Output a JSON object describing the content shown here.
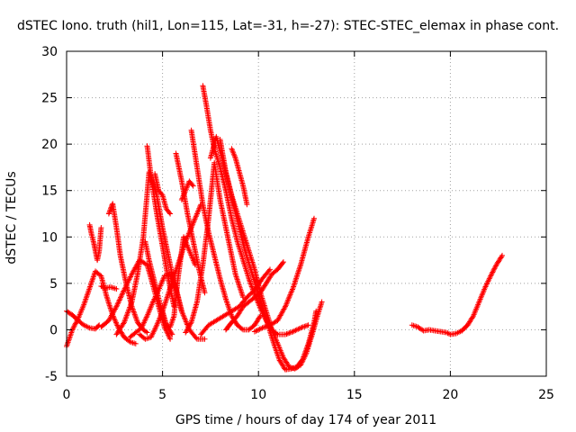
{
  "chart_data": {
    "type": "scatter",
    "title": "dSTEC Iono. truth (hil1, Lon=115, Lat=-31, h=-27): STEC-STEC_elemax in phase cont.",
    "xlabel": "GPS time / hours of day 174 of year 2011",
    "ylabel": "dSTEC  / TECUs",
    "xlim": [
      0,
      25
    ],
    "ylim": [
      -5,
      30
    ],
    "xticks": [
      0,
      5,
      10,
      15,
      20,
      25
    ],
    "yticks": [
      -5,
      0,
      5,
      10,
      15,
      20,
      25,
      30
    ],
    "grid": true,
    "marker": "+",
    "color": "#ff0000",
    "series": [
      {
        "x": [
          0.0,
          0.3,
          0.6,
          0.9,
          1.2,
          1.5,
          1.7
        ],
        "y": [
          2.0,
          1.6,
          1.0,
          0.5,
          0.2,
          0.1,
          0.5
        ]
      },
      {
        "x": [
          0.0,
          0.3,
          0.6,
          0.9,
          1.2,
          1.5,
          1.8,
          2.1,
          2.4,
          2.7,
          3.0,
          3.3,
          3.6
        ],
        "y": [
          -1.8,
          0.0,
          1.2,
          2.7,
          4.5,
          6.3,
          5.8,
          3.5,
          1.6,
          0.2,
          -0.8,
          -1.3,
          -1.5
        ]
      },
      {
        "x": [
          1.2,
          1.3,
          1.4,
          1.5,
          1.6,
          1.7,
          1.8
        ],
        "y": [
          11.3,
          10.3,
          9.5,
          8.5,
          7.5,
          8.5,
          11.0
        ]
      },
      {
        "x": [
          1.8,
          2.0,
          2.3,
          2.6
        ],
        "y": [
          4.7,
          4.5,
          4.6,
          4.4
        ]
      },
      {
        "x": [
          2.2,
          2.4,
          2.6,
          2.8,
          3.1,
          3.4,
          3.7,
          4.0,
          4.2
        ],
        "y": [
          12.5,
          13.6,
          11.0,
          8.0,
          5.0,
          2.5,
          0.8,
          0.0,
          -0.3
        ]
      },
      {
        "x": [
          1.8,
          2.2,
          2.6,
          3.0,
          3.4,
          3.8,
          4.2,
          4.5,
          4.8,
          5.1,
          5.4
        ],
        "y": [
          0.3,
          1.0,
          2.5,
          4.3,
          6.0,
          7.5,
          7.0,
          4.8,
          2.5,
          0.3,
          -1.0
        ]
      },
      {
        "x": [
          2.6,
          3.0,
          3.4,
          3.7,
          4.0,
          4.3,
          4.7,
          5.0,
          5.3,
          5.6,
          6.0,
          6.4,
          6.8,
          7.2
        ],
        "y": [
          -0.5,
          0.8,
          3.0,
          6.0,
          10.0,
          17.0,
          14.5,
          11.0,
          8.0,
          5.0,
          2.0,
          0.0,
          -1.0,
          -1.0
        ]
      },
      {
        "x": [
          3.3,
          3.6,
          3.9,
          4.2,
          4.5,
          4.8,
          5.1,
          5.4,
          5.7,
          6.0
        ],
        "y": [
          -0.8,
          -0.3,
          0.2,
          1.5,
          3.0,
          4.3,
          5.8,
          6.0,
          4.5,
          2.0
        ]
      },
      {
        "x": [
          4.1,
          4.3,
          4.6,
          4.9,
          5.2,
          5.5
        ],
        "y": [
          9.5,
          7.5,
          5.0,
          2.5,
          0.5,
          -0.5
        ]
      },
      {
        "x": [
          4.2,
          4.4,
          4.7,
          5.0,
          5.3,
          5.6
        ],
        "y": [
          19.8,
          16.5,
          12.5,
          9.0,
          5.5,
          2.5
        ]
      },
      {
        "x": [
          4.6,
          4.8,
          5.0,
          5.2,
          5.4
        ],
        "y": [
          16.8,
          15.0,
          14.5,
          13.0,
          12.5
        ]
      },
      {
        "x": [
          5.0,
          5.2,
          5.4,
          5.6,
          5.8,
          6.1,
          6.4,
          6.7
        ],
        "y": [
          2.0,
          0.5,
          0.3,
          1.5,
          5.5,
          10.0,
          8.5,
          7.0
        ]
      },
      {
        "x": [
          3.8,
          4.1,
          4.4,
          4.7,
          5.0,
          5.4,
          5.8,
          6.2,
          6.6,
          7.0
        ],
        "y": [
          -0.5,
          -1.0,
          -0.8,
          0.5,
          2.0,
          4.5,
          7.0,
          9.5,
          11.5,
          13.5
        ]
      },
      {
        "x": [
          5.7,
          6.0,
          6.3,
          6.6,
          6.9,
          7.2
        ],
        "y": [
          19.0,
          16.0,
          12.5,
          9.5,
          6.5,
          4.0
        ]
      },
      {
        "x": [
          6.0,
          6.2,
          6.4,
          6.6
        ],
        "y": [
          14.0,
          15.0,
          16.0,
          15.5
        ]
      },
      {
        "x": [
          6.2,
          6.5,
          6.8,
          7.1,
          7.4,
          7.7,
          8.0,
          8.4,
          8.8,
          9.2
        ],
        "y": [
          -0.3,
          0.8,
          3.0,
          7.0,
          12.0,
          18.0,
          14.0,
          10.0,
          6.0,
          3.5
        ]
      },
      {
        "x": [
          6.5,
          6.8,
          7.1,
          7.4,
          7.7,
          8.0,
          8.3,
          8.6,
          8.9,
          9.2,
          9.5,
          9.8,
          10.1
        ],
        "y": [
          21.5,
          17.5,
          13.5,
          10.5,
          8.0,
          5.5,
          3.3,
          1.5,
          0.5,
          0.0,
          0.0,
          0.5,
          1.5
        ]
      },
      {
        "x": [
          7.1,
          7.3,
          7.5,
          7.7,
          8.0,
          8.3,
          8.6,
          8.9,
          9.2,
          9.5,
          9.8,
          10.1,
          10.4,
          10.7,
          11.0,
          11.4,
          11.8,
          12.2,
          12.6
        ],
        "y": [
          26.3,
          24.0,
          21.5,
          19.5,
          17.5,
          15.0,
          12.0,
          9.5,
          7.5,
          5.5,
          3.8,
          2.3,
          1.0,
          0.0,
          -0.5,
          -0.5,
          -0.2,
          0.2,
          0.5
        ]
      },
      {
        "x": [
          7.5,
          7.8,
          8.1,
          8.4,
          8.7,
          9.0,
          9.3,
          9.6,
          9.9,
          10.2,
          10.5,
          10.8,
          11.1,
          11.4,
          11.7,
          12.0,
          12.3,
          12.6,
          12.9,
          13.0
        ],
        "y": [
          18.5,
          20.8,
          18.5,
          16.0,
          13.5,
          11.0,
          8.5,
          6.5,
          4.5,
          2.5,
          0.5,
          -1.5,
          -3.3,
          -4.3,
          -4.2,
          -4.0,
          -3.2,
          -1.5,
          0.8,
          2.0
        ]
      },
      {
        "x": [
          8.0,
          8.3,
          8.6,
          8.9,
          9.2,
          9.5,
          9.8,
          10.1,
          10.4,
          10.7,
          11.0,
          11.3,
          11.6,
          11.9,
          12.2,
          12.5,
          12.8,
          13.0,
          13.3
        ],
        "y": [
          20.5,
          17.0,
          14.5,
          12.5,
          10.5,
          8.5,
          6.5,
          4.0,
          2.0,
          0.0,
          -1.5,
          -3.0,
          -4.0,
          -4.2,
          -3.8,
          -2.5,
          -0.5,
          1.0,
          3.0
        ]
      },
      {
        "x": [
          8.3,
          8.6,
          8.9,
          9.2,
          9.5,
          9.8,
          10.1,
          10.4,
          10.7,
          11.0,
          11.3
        ],
        "y": [
          0.0,
          0.8,
          1.5,
          2.5,
          3.0,
          3.5,
          4.0,
          5.0,
          6.0,
          6.5,
          7.3
        ]
      },
      {
        "x": [
          7.0,
          7.4,
          7.8,
          8.2,
          8.6,
          9.0,
          9.4,
          9.8,
          10.2,
          10.6
        ],
        "y": [
          -0.5,
          0.5,
          1.0,
          1.5,
          2.0,
          2.5,
          3.5,
          4.3,
          5.5,
          6.5
        ]
      },
      {
        "x": [
          9.8,
          10.2,
          10.6,
          11.0,
          11.4,
          11.8,
          12.2,
          12.6,
          12.9
        ],
        "y": [
          -0.2,
          0.2,
          0.5,
          1.0,
          2.5,
          4.5,
          7.0,
          10.0,
          12.0
        ]
      },
      {
        "x": [
          8.6,
          8.8,
          9.0,
          9.2,
          9.4
        ],
        "y": [
          19.5,
          18.5,
          17.0,
          15.5,
          13.5
        ]
      },
      {
        "x": [
          18.0,
          18.3,
          18.6,
          18.9,
          19.2,
          19.5,
          19.8,
          20.0,
          20.3,
          20.6
        ],
        "y": [
          0.5,
          0.3,
          -0.1,
          0.0,
          -0.1,
          -0.2,
          -0.3,
          -0.5,
          -0.4,
          -0.1
        ]
      },
      {
        "x": [
          20.6,
          20.9,
          21.2,
          21.5,
          21.8,
          22.1,
          22.4,
          22.7
        ],
        "y": [
          -0.1,
          0.5,
          1.5,
          3.0,
          4.5,
          5.8,
          7.0,
          8.0
        ]
      }
    ]
  }
}
